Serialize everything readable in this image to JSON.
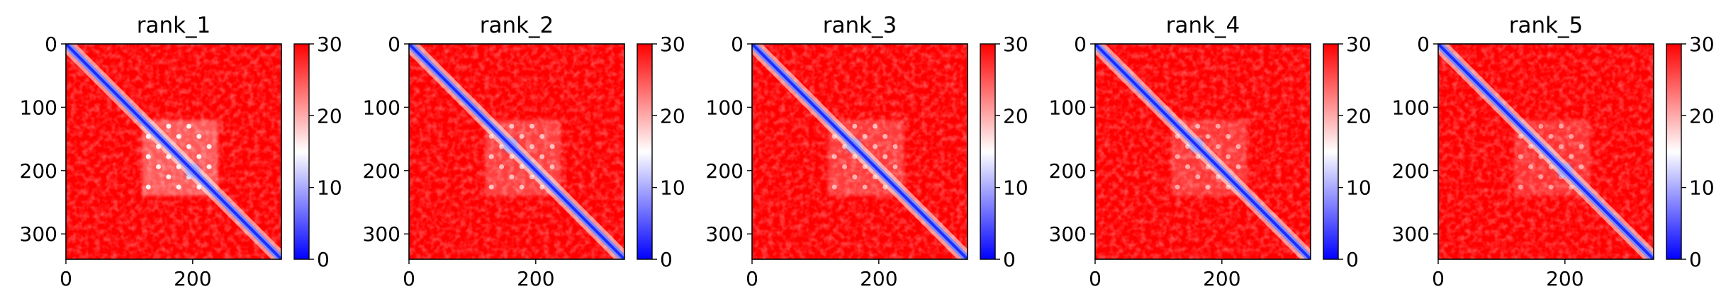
{
  "chart_data": [
    {
      "type": "heatmap",
      "title": "rank_1",
      "x_ticks": [
        0,
        200
      ],
      "y_ticks": [
        0,
        100,
        200,
        300
      ],
      "x_range": [
        0,
        340
      ],
      "y_range": [
        0,
        340
      ],
      "colorbar": {
        "ticks": [
          0,
          10,
          20,
          30
        ],
        "range": [
          0,
          30
        ],
        "colors": [
          "#0000ff",
          "#ffffff",
          "#ff0000"
        ]
      },
      "features": {
        "central_block": [
          120,
          240
        ],
        "central_strength": 1.0,
        "blue_hub": 200
      }
    },
    {
      "type": "heatmap",
      "title": "rank_2",
      "x_ticks": [
        0,
        200
      ],
      "y_ticks": [
        0,
        100,
        200,
        300
      ],
      "x_range": [
        0,
        340
      ],
      "y_range": [
        0,
        340
      ],
      "colorbar": {
        "ticks": [
          0,
          10,
          20,
          30
        ],
        "range": [
          0,
          30
        ],
        "colors": [
          "#0000ff",
          "#ffffff",
          "#ff0000"
        ]
      },
      "features": {
        "central_block": [
          120,
          240
        ],
        "central_strength": 0.7,
        "blue_hub": 160
      }
    },
    {
      "type": "heatmap",
      "title": "rank_3",
      "x_ticks": [
        0,
        200
      ],
      "y_ticks": [
        0,
        100,
        200,
        300
      ],
      "x_range": [
        0,
        340
      ],
      "y_range": [
        0,
        340
      ],
      "colorbar": {
        "ticks": [
          0,
          10,
          20,
          30
        ],
        "range": [
          0,
          30
        ],
        "colors": [
          "#0000ff",
          "#ffffff",
          "#ff0000"
        ]
      },
      "features": {
        "central_block": [
          120,
          240
        ],
        "central_strength": 0.65,
        "blue_hub": 160
      }
    },
    {
      "type": "heatmap",
      "title": "rank_4",
      "x_ticks": [
        0,
        200
      ],
      "y_ticks": [
        0,
        100,
        200,
        300
      ],
      "x_range": [
        0,
        340
      ],
      "y_range": [
        0,
        340
      ],
      "colorbar": {
        "ticks": [
          0,
          10,
          20,
          30
        ],
        "range": [
          0,
          30
        ],
        "colors": [
          "#0000ff",
          "#ffffff",
          "#ff0000"
        ]
      },
      "features": {
        "central_block": [
          120,
          240
        ],
        "central_strength": 0.6,
        "blue_hub": 160
      }
    },
    {
      "type": "heatmap",
      "title": "rank_5",
      "x_ticks": [
        0,
        200
      ],
      "y_ticks": [
        0,
        100,
        200,
        300
      ],
      "x_range": [
        0,
        340
      ],
      "y_range": [
        0,
        340
      ],
      "colorbar": {
        "ticks": [
          0,
          10,
          20,
          30
        ],
        "range": [
          0,
          30
        ],
        "colors": [
          "#0000ff",
          "#ffffff",
          "#ff0000"
        ]
      },
      "features": {
        "central_block": [
          120,
          240
        ],
        "central_strength": 0.55,
        "blue_hub": 200
      }
    }
  ]
}
